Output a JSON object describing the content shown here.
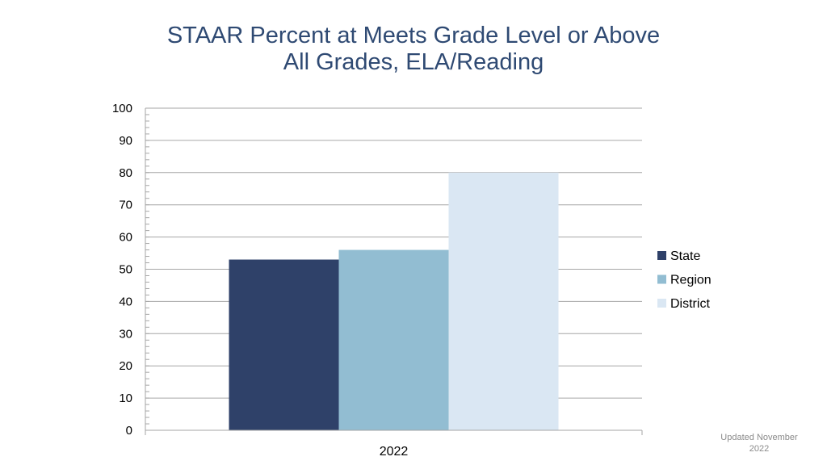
{
  "title": {
    "line1": "STAAR Percent at Meets Grade Level or Above",
    "line2": "All Grades, ELA/Reading"
  },
  "footer": {
    "note": "Updated November 2022"
  },
  "colors": {
    "State": "#2f4169",
    "Region": "#92bdd2",
    "District": "#dae7f3",
    "title": "#2f4a73",
    "gridline": "#a6a6a6"
  },
  "chart_data": {
    "type": "bar",
    "categories": [
      "2022"
    ],
    "series": [
      {
        "name": "State",
        "values": [
          53
        ]
      },
      {
        "name": "Region",
        "values": [
          56
        ]
      },
      {
        "name": "District",
        "values": [
          80
        ]
      }
    ],
    "title": "STAAR Percent at Meets Grade Level or Above All Grades, ELA/Reading",
    "xlabel": "",
    "ylabel": "",
    "ylim": [
      0,
      100
    ],
    "yticks": [
      0,
      10,
      20,
      30,
      40,
      50,
      60,
      70,
      80,
      90,
      100
    ],
    "grid": true,
    "legend": "right"
  }
}
